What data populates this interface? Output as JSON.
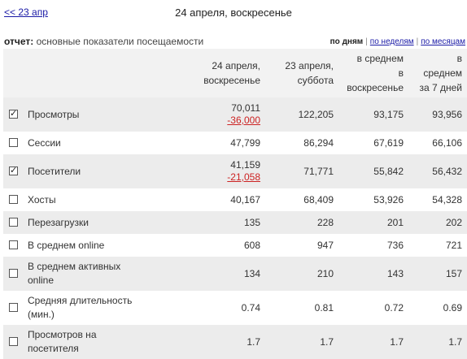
{
  "nav": {
    "back_label": "<< 23 апр",
    "date_title": "24 апреля, воскресенье"
  },
  "report": {
    "label_prefix": "отчет:",
    "label_text": " основные показатели посещаемости",
    "periods": {
      "active": "по дням",
      "weeks": "по неделям",
      "months": "по месяцам",
      "separator": "|"
    }
  },
  "table": {
    "headers": {
      "col1_line1": "24 апреля,",
      "col1_line2": "воскресенье",
      "col2_line1": "23 апреля,",
      "col2_line2": "суббота",
      "col3_line1": "в среднем",
      "col3_line2": "в",
      "col3_line3": "воскресенье",
      "col4_line1": "в",
      "col4_line2": "среднем",
      "col4_line3": "за 7 дней"
    },
    "rows": [
      {
        "checked": true,
        "label": "Просмотры",
        "v1": "70,011",
        "diff": "-36,000",
        "v2": "122,205",
        "v3": "93,175",
        "v4": "93,956"
      },
      {
        "checked": false,
        "label": "Сессии",
        "v1": "47,799",
        "v2": "86,294",
        "v3": "67,619",
        "v4": "66,106"
      },
      {
        "checked": true,
        "label": "Посетители",
        "v1": "41,159",
        "diff": "-21,058",
        "v2": "71,771",
        "v3": "55,842",
        "v4": "56,432"
      },
      {
        "checked": false,
        "label": "Хосты",
        "v1": "40,167",
        "v2": "68,409",
        "v3": "53,926",
        "v4": "54,328"
      },
      {
        "checked": false,
        "label": "Перезагрузки",
        "v1": "135",
        "v2": "228",
        "v3": "201",
        "v4": "202"
      },
      {
        "checked": false,
        "label": "В среднем online",
        "v1": "608",
        "v2": "947",
        "v3": "736",
        "v4": "721"
      },
      {
        "checked": false,
        "label_line1": "В среднем активных",
        "label_line2": "online",
        "v1": "134",
        "v2": "210",
        "v3": "143",
        "v4": "157"
      },
      {
        "checked": false,
        "label_line1": "Средняя длительность",
        "label_line2": "(мин.)",
        "v1": "0.74",
        "v2": "0.81",
        "v3": "0.72",
        "v4": "0.69"
      },
      {
        "checked": false,
        "label_line1": "Просмотров на",
        "label_line2": "посетителя",
        "v1": "1.7",
        "v2": "1.7",
        "v3": "1.7",
        "v4": "1.7"
      }
    ]
  }
}
